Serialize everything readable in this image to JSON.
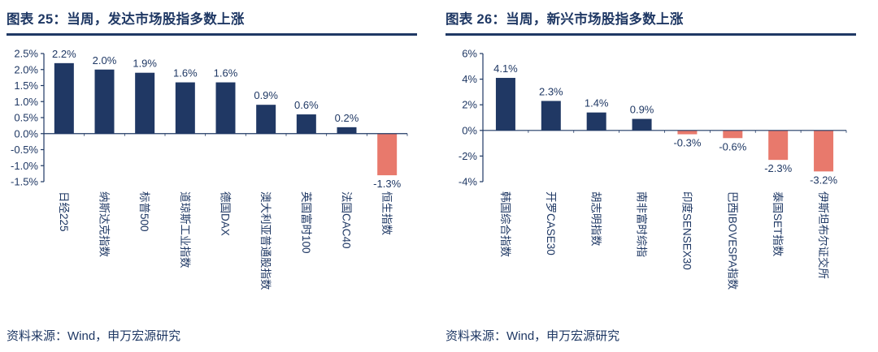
{
  "colors": {
    "navy": "#1F3864",
    "bar_positive": "#203864",
    "bar_negative": "#E8796C"
  },
  "charts": [
    {
      "title": "图表 25：当周，发达市场股指多数上涨",
      "source": "资料来源：Wind，申万宏源研究",
      "chart_data": {
        "type": "bar",
        "categories": [
          "日经225",
          "纳斯达克指数",
          "标普500",
          "道琼斯工业指数",
          "德国DAX",
          "澳大利亚普通股指数",
          "英国富时100",
          "法国CAC40",
          "恒生指数"
        ],
        "values": [
          2.2,
          2.0,
          1.9,
          1.6,
          1.6,
          0.9,
          0.6,
          0.2,
          -1.3
        ],
        "labels": [
          "2.2%",
          "2.0%",
          "1.9%",
          "1.6%",
          "1.6%",
          "0.9%",
          "0.6%",
          "0.2%",
          "-1.3%"
        ],
        "title": "当周，发达市场股指多数上涨",
        "xlabel": "",
        "ylabel": "",
        "ylim": [
          -1.5,
          2.5
        ],
        "ytick_step": 0.5,
        "ytick_labels": [
          "2.5%",
          "2.0%",
          "1.5%",
          "1.0%",
          "0.5%",
          "0.0%",
          "-0.5%",
          "-1.0%",
          "-1.5%"
        ],
        "grid": false,
        "legend": false,
        "positive_color": "#203864",
        "negative_color": "#E8796C",
        "axis_color": "#1F3864"
      }
    },
    {
      "title": "图表 26：当周，新兴市场股指多数上涨",
      "source": "资料来源：Wind，申万宏源研究",
      "chart_data": {
        "type": "bar",
        "categories": [
          "韩国综合指数",
          "开罗CASE30",
          "胡志明指数",
          "南非富时综指",
          "印度SENSEX30",
          "巴西IBOVESPA指数",
          "泰国SET指数",
          "伊斯坦布尔证交所"
        ],
        "values": [
          4.1,
          2.3,
          1.4,
          0.9,
          -0.3,
          -0.6,
          -2.3,
          -3.2
        ],
        "labels": [
          "4.1%",
          "2.3%",
          "1.4%",
          "0.9%",
          "-0.3%",
          "-0.6%",
          "-2.3%",
          "-3.2%"
        ],
        "title": "当周，新兴市场股指多数上涨",
        "xlabel": "",
        "ylabel": "",
        "ylim": [
          -4,
          6
        ],
        "ytick_step": 2,
        "ytick_labels": [
          "6%",
          "4%",
          "2%",
          "0%",
          "-2%",
          "-4%"
        ],
        "grid": false,
        "legend": false,
        "positive_color": "#203864",
        "negative_color": "#E8796C",
        "axis_color": "#1F3864"
      }
    }
  ]
}
